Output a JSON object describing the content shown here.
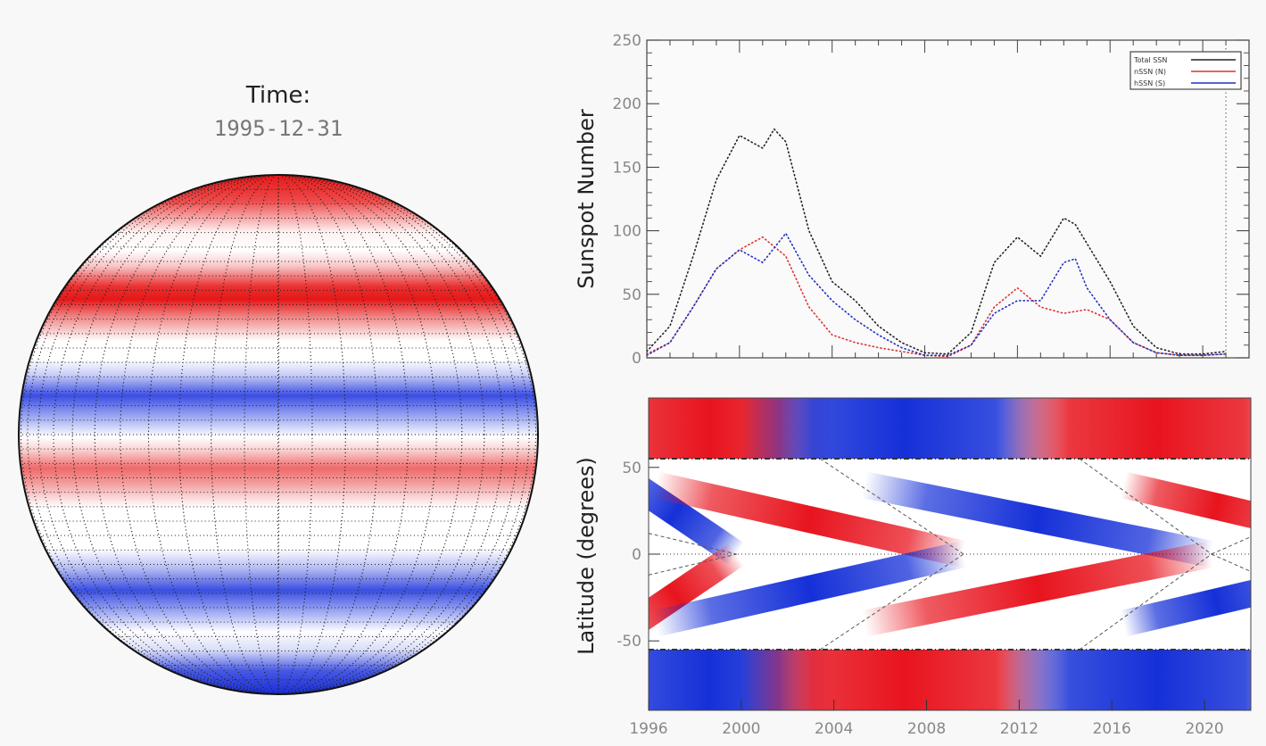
{
  "header": {
    "time_label": "Time:",
    "date_value": "1995-12-31"
  },
  "colors": {
    "positive": "#e8141e",
    "negative": "#1530d8",
    "total": "#222222",
    "north": "#e03030",
    "south": "#2030c0"
  },
  "chart_data": [
    {
      "type": "line",
      "title": "",
      "ylabel": "Sunspot Number",
      "xlim": [
        1996,
        2022
      ],
      "ylim": [
        0,
        250
      ],
      "yticks": [
        "0",
        "50",
        "100",
        "150",
        "200",
        "250"
      ],
      "legend_position": "top-right",
      "grid": false,
      "current_time_marker": 2021,
      "series": [
        {
          "name": "Total SSN",
          "color": "#222222",
          "x": [
            1996,
            1997,
            1998,
            1999,
            2000,
            2001,
            2001.5,
            2002,
            2003,
            2004,
            2005,
            2006,
            2007,
            2008,
            2009,
            2010,
            2011,
            2012,
            2013,
            2014,
            2014.5,
            2015,
            2016,
            2017,
            2018,
            2019,
            2020,
            2021
          ],
          "y": [
            5,
            25,
            80,
            140,
            175,
            165,
            180,
            170,
            100,
            60,
            45,
            25,
            12,
            4,
            3,
            20,
            75,
            95,
            80,
            110,
            105,
            90,
            60,
            25,
            8,
            3,
            3,
            5
          ]
        },
        {
          "name": "nSSN (N)",
          "color": "#e03030",
          "x": [
            1996,
            1997,
            1998,
            1999,
            2000,
            2001,
            2002,
            2003,
            2004,
            2005,
            2006,
            2007,
            2008,
            2009,
            2010,
            2011,
            2012,
            2013,
            2014,
            2015,
            2016,
            2017,
            2018,
            2019,
            2020,
            2021
          ],
          "y": [
            3,
            12,
            40,
            70,
            85,
            95,
            80,
            40,
            18,
            12,
            8,
            5,
            2,
            1,
            10,
            40,
            55,
            40,
            35,
            38,
            30,
            12,
            4,
            2,
            2,
            3
          ]
        },
        {
          "name": "hSSN (S)",
          "color": "#2030c0",
          "x": [
            1996,
            1997,
            1998,
            1999,
            2000,
            2001,
            2002,
            2003,
            2004,
            2005,
            2006,
            2007,
            2008,
            2009,
            2010,
            2011,
            2012,
            2013,
            2014,
            2014.5,
            2015,
            2016,
            2017,
            2018,
            2019,
            2020,
            2021
          ],
          "y": [
            2,
            12,
            40,
            70,
            85,
            75,
            98,
            65,
            45,
            30,
            18,
            8,
            2,
            2,
            10,
            35,
            45,
            45,
            75,
            78,
            55,
            30,
            12,
            4,
            2,
            2,
            3
          ]
        }
      ]
    },
    {
      "type": "heatmap",
      "title": "",
      "xlabel": "",
      "ylabel": "Latitude (degrees)",
      "xlim": [
        1996,
        2022
      ],
      "ylim": [
        -90,
        90
      ],
      "xticks": [
        "1996",
        "2000",
        "2004",
        "2008",
        "2012",
        "2016",
        "2020"
      ],
      "yticks": [
        "-50",
        "0",
        "50"
      ],
      "reference_lines_latitude": [
        55,
        -55,
        0
      ],
      "colormap": "red-white-blue"
    }
  ]
}
